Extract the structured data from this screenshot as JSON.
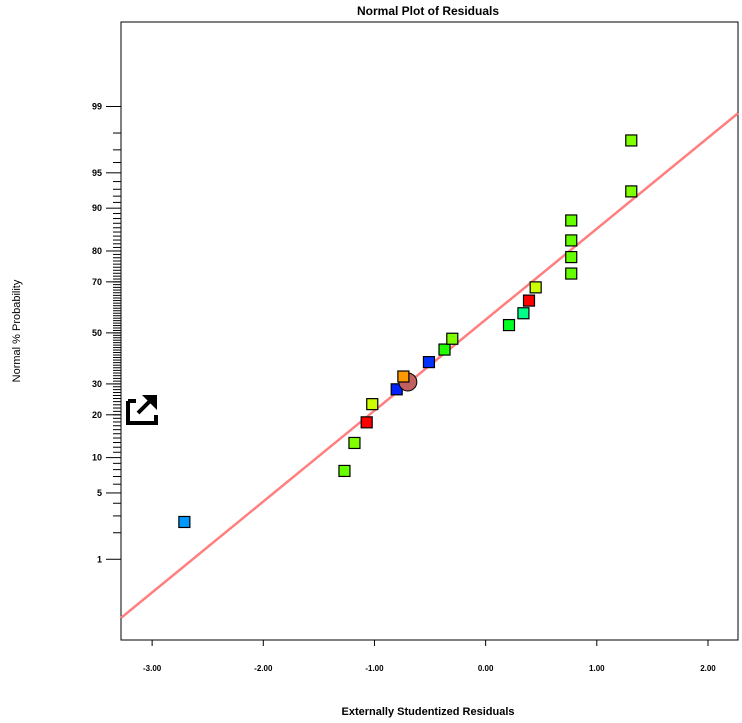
{
  "chart_data": {
    "type": "scatter",
    "title": "Normal Plot of Residuals",
    "xlabel": "Externally Studentized Residuals",
    "ylabel": "Normal % Probability",
    "xlim": [
      -3.28,
      2.27
    ],
    "ylim": [
      0.08,
      99.93
    ],
    "y_scale": "normal-probability",
    "grid": false,
    "x_ticks": [
      {
        "value": -3,
        "label": "-3.00"
      },
      {
        "value": -2,
        "label": "-2.00"
      },
      {
        "value": -1,
        "label": "-1.00"
      },
      {
        "value": 0,
        "label": "0.00"
      },
      {
        "value": 1,
        "label": "1.00"
      },
      {
        "value": 2,
        "label": "2.00"
      }
    ],
    "y_ticks": [
      {
        "value": 1,
        "label": "1"
      },
      {
        "value": 5,
        "label": "5"
      },
      {
        "value": 10,
        "label": "10"
      },
      {
        "value": 20,
        "label": "20"
      },
      {
        "value": 30,
        "label": "30"
      },
      {
        "value": 50,
        "label": "50"
      },
      {
        "value": 70,
        "label": "70"
      },
      {
        "value": 80,
        "label": "80"
      },
      {
        "value": 90,
        "label": "90"
      },
      {
        "value": 95,
        "label": "95"
      },
      {
        "value": 99,
        "label": "99"
      }
    ],
    "reference_line": {
      "color": "#ff7f7f",
      "points": [
        {
          "x": -3.28,
          "y": 0.17
        },
        {
          "x": 2.27,
          "y": 98.8
        }
      ]
    },
    "points": [
      {
        "x": -2.71,
        "y": 2.6,
        "color": "#0099ff"
      },
      {
        "x": -1.27,
        "y": 7.8,
        "color": "#66ff00"
      },
      {
        "x": -1.18,
        "y": 12.9,
        "color": "#80ff00"
      },
      {
        "x": -1.07,
        "y": 17.9,
        "color": "#ff0000"
      },
      {
        "x": -1.02,
        "y": 23.2,
        "color": "#ccff00"
      },
      {
        "x": -0.8,
        "y": 28.1,
        "color": "#0022ff"
      },
      {
        "x": -0.74,
        "y": 32.7,
        "color": "#ff9900"
      },
      {
        "x": -0.51,
        "y": 38.2,
        "color": "#0033ff"
      },
      {
        "x": -0.37,
        "y": 43.2,
        "color": "#22ff00"
      },
      {
        "x": -0.3,
        "y": 47.6,
        "color": "#80ff00"
      },
      {
        "x": 0.21,
        "y": 53.2,
        "color": "#00ff22"
      },
      {
        "x": 0.34,
        "y": 58.0,
        "color": "#00ff88"
      },
      {
        "x": 0.39,
        "y": 63.0,
        "color": "#ff0000"
      },
      {
        "x": 0.45,
        "y": 68.0,
        "color": "#ccff00"
      },
      {
        "x": 0.77,
        "y": 72.9,
        "color": "#66ff00"
      },
      {
        "x": 0.77,
        "y": 78.2,
        "color": "#66ff00"
      },
      {
        "x": 0.77,
        "y": 82.9,
        "color": "#66ff00"
      },
      {
        "x": 0.77,
        "y": 87.6,
        "color": "#66ff00"
      },
      {
        "x": 1.31,
        "y": 92.7,
        "color": "#80ff00"
      },
      {
        "x": 1.31,
        "y": 97.6,
        "color": "#80ff00"
      }
    ],
    "highlight_point": {
      "x": -0.7,
      "y": 30.7,
      "color": "#c06060",
      "shape": "circle"
    }
  },
  "icons": {
    "export": "external-link-icon"
  }
}
